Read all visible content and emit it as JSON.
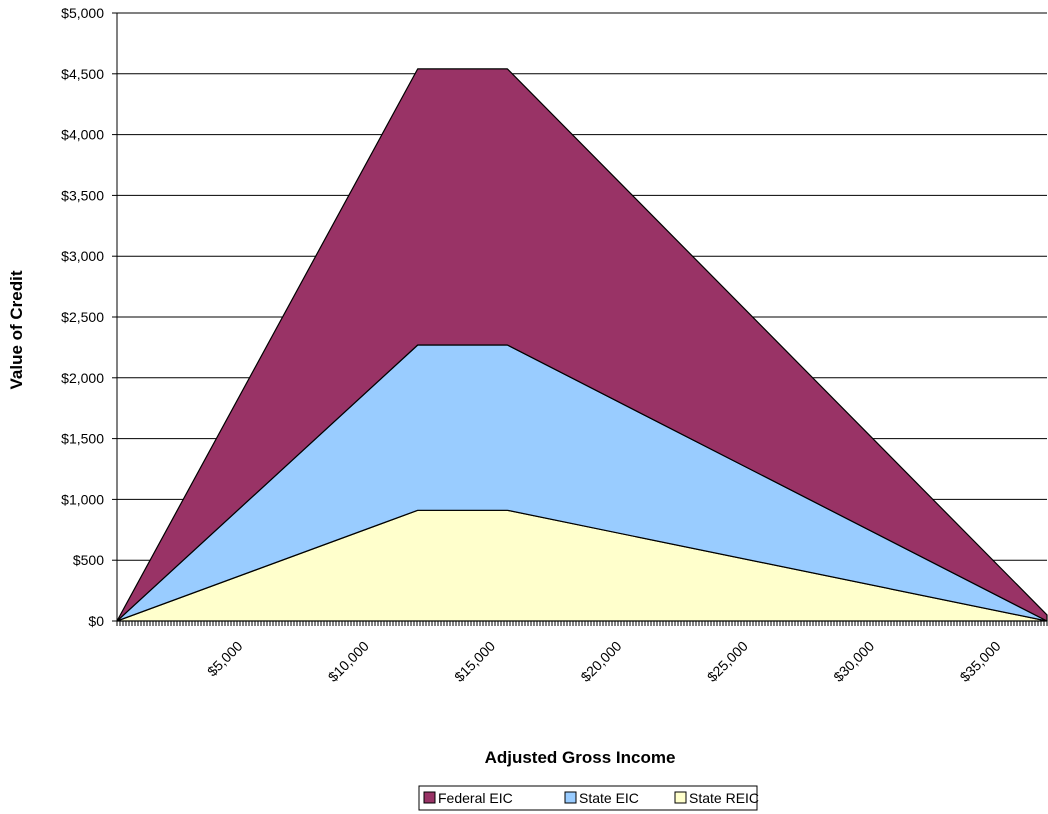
{
  "chart_data": {
    "type": "area",
    "stacked": true,
    "title": "",
    "xlabel": "Adjusted Gross Income",
    "ylabel": "Value of Credit",
    "xlim": [
      0,
      36800
    ],
    "ylim": [
      0,
      5000
    ],
    "yticks": [
      0,
      500,
      1000,
      1500,
      2000,
      2500,
      3000,
      3500,
      4000,
      4500,
      5000
    ],
    "ytick_labels": [
      "$0",
      "$500",
      "$1,000",
      "$1,500",
      "$2,000",
      "$2,500",
      "$3,000",
      "$3,500",
      "$4,000",
      "$4,500",
      "$5,000"
    ],
    "xticks": [
      5000,
      10000,
      15000,
      20000,
      25000,
      30000,
      35000
    ],
    "xtick_labels": [
      "$5,000",
      "$10,000",
      "$15,000",
      "$20,000",
      "$25,000",
      "$30,000",
      "$35,000"
    ],
    "grid": {
      "horizontal": true,
      "vertical": false
    },
    "legend": "bottom-center",
    "x": [
      0,
      11900,
      15450,
      36800
    ],
    "series": [
      {
        "name": "State REIC",
        "color": "#ffffcc",
        "values": [
          0,
          910,
          910,
          0
        ]
      },
      {
        "name": "State EIC",
        "color": "#99ccff",
        "values": [
          0,
          1360,
          1360,
          0
        ]
      },
      {
        "name": "Federal EIC",
        "color": "#993366",
        "values": [
          0,
          2270,
          2270,
          50
        ]
      }
    ],
    "legend_order": [
      "Federal EIC",
      "State EIC",
      "State REIC"
    ]
  }
}
